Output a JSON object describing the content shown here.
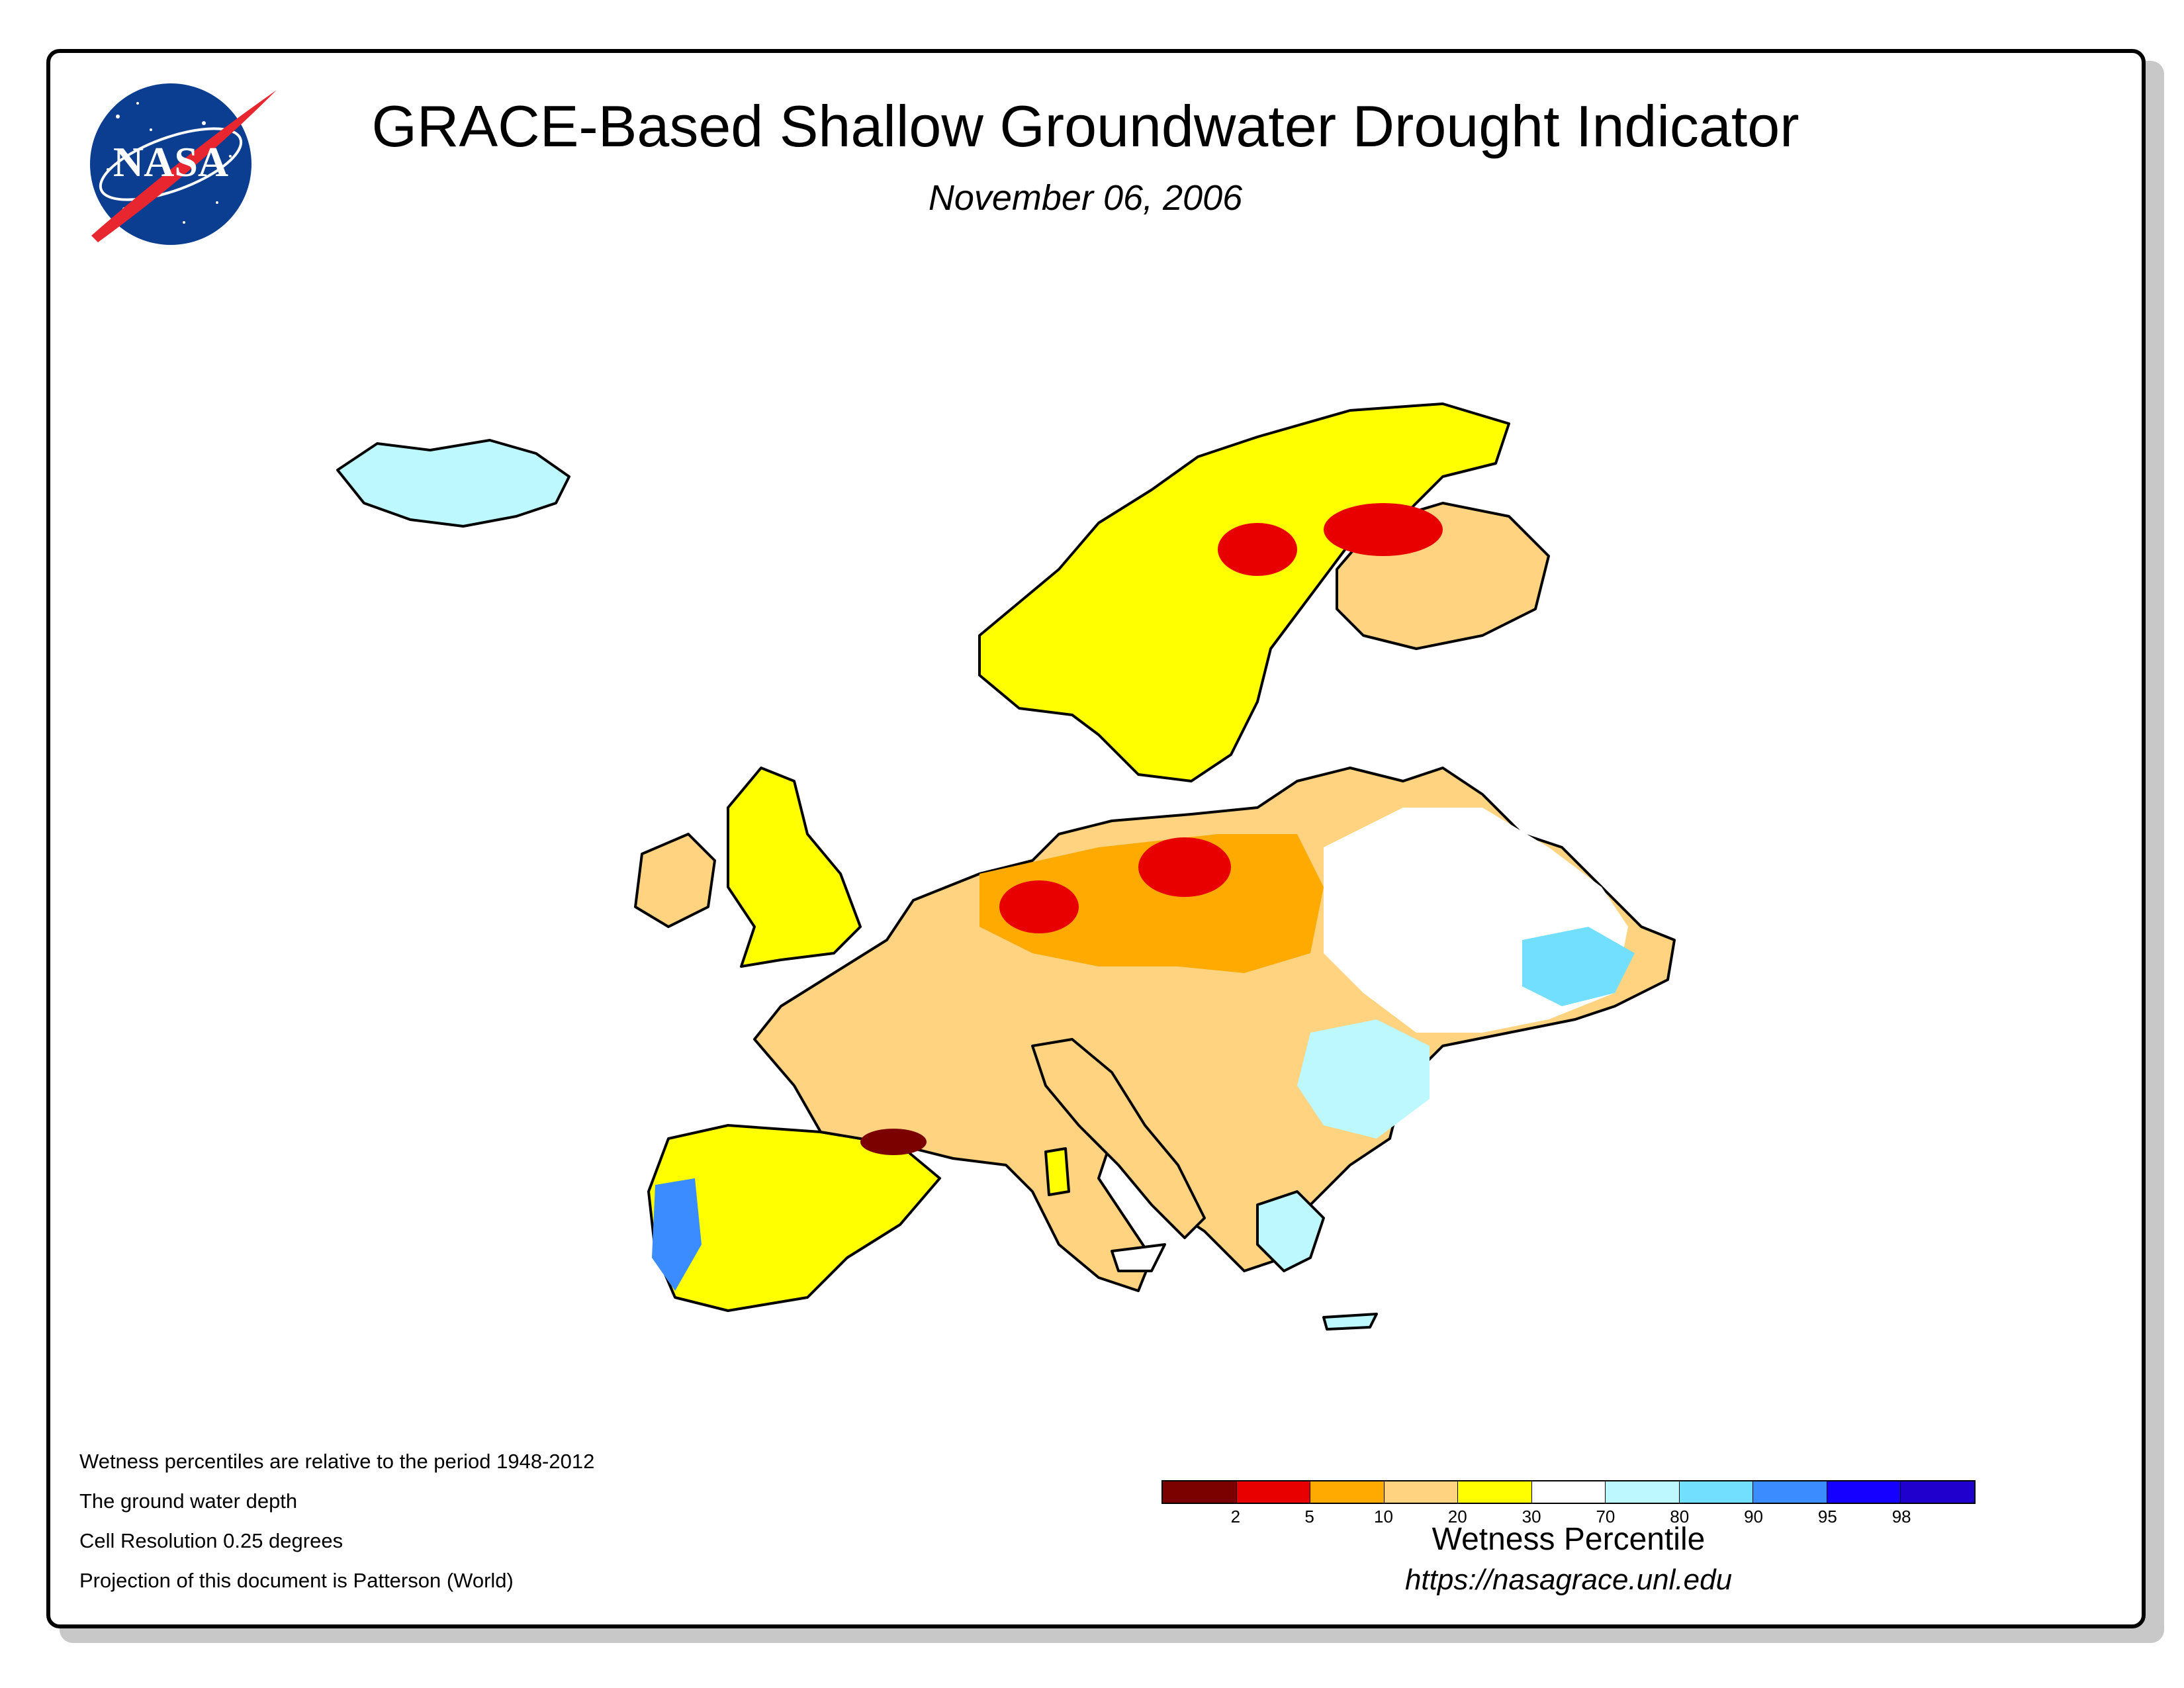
{
  "header": {
    "logo_text": "NASA",
    "title": "GRACE-Based Shallow Groundwater Drought Indicator",
    "date": "November 06, 2006"
  },
  "notes": [
    "Wetness percentiles are relative to the period 1948-2012",
    "The ground water depth",
    "Cell Resolution 0.25 degrees",
    "Projection of this document is Patterson (World)"
  ],
  "legend": {
    "title": "Wetness Percentile",
    "colors": [
      "#7b0000",
      "#e80000",
      "#ffaa00",
      "#ffd37f",
      "#ffff00",
      "#ffffff",
      "#bef8ff",
      "#73dfff",
      "#3a8cff",
      "#1500ff",
      "#2000cc"
    ],
    "tick_labels": [
      "2",
      "5",
      "10",
      "20",
      "30",
      "70",
      "80",
      "90",
      "95",
      "98"
    ]
  },
  "source_url": "https://nasagrace.unl.edu"
}
